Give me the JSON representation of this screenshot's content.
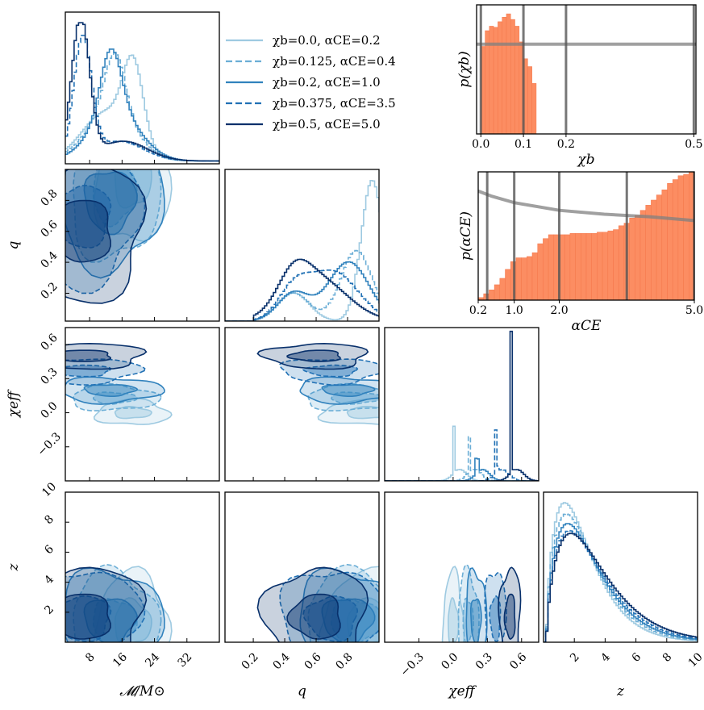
{
  "legend": [
    {
      "label": "χb=0.0, αCE=0.2",
      "color": "#9ecae1",
      "dash": "solid"
    },
    {
      "label": "χb=0.125, αCE=0.4",
      "color": "#6baed6",
      "dash": "dashed"
    },
    {
      "label": "χb=0.2, αCE=1.0",
      "color": "#3182bd",
      "dash": "solid"
    },
    {
      "label": "χb=0.375, αCE=3.5",
      "color": "#2171b5",
      "dash": "dashed"
    },
    {
      "label": "χb=0.5, αCE=5.0",
      "color": "#08306b",
      "dash": "solid"
    }
  ],
  "chart_data": [
    {
      "type": "corner",
      "variables": [
        "M/M⊙",
        "q",
        "χeff",
        "z"
      ],
      "xlabels": [
        "𝓜/M⊙",
        "q",
        "χeff",
        "z"
      ],
      "ylabels": [
        "",
        "q",
        "χeff",
        "z"
      ],
      "ticks": {
        "M": {
          "range": [
            2,
            40
          ],
          "values": [
            8,
            16,
            24,
            32
          ],
          "labels": [
            "8",
            "16",
            "24",
            "32"
          ]
        },
        "q": {
          "range": [
            0.02,
            1.0
          ],
          "values": [
            0.2,
            0.4,
            0.6,
            0.8
          ],
          "labels": [
            "0.2",
            "0.4",
            "0.6",
            "0.8"
          ]
        },
        "chi": {
          "range": [
            -0.6,
            0.75
          ],
          "values": [
            -0.3,
            0.0,
            0.3,
            0.6
          ],
          "labels": [
            "−0.3",
            "0.0",
            "0.3",
            "0.6"
          ]
        },
        "z": {
          "range": [
            0,
            10
          ],
          "values": [
            2,
            4,
            6,
            8,
            10
          ],
          "labels": [
            "2",
            "4",
            "6",
            "8",
            "10"
          ]
        }
      },
      "series_modes": [
        {
          "name": "χb=0.0, αCE=0.2",
          "M": 18.5,
          "q": 0.95,
          "chi": 0.0,
          "z": 1.3
        },
        {
          "name": "χb=0.125, αCE=0.4",
          "M": 14,
          "q": 0.85,
          "chi": 0.13,
          "z": 1.4
        },
        {
          "name": "χb=0.2, αCE=1.0",
          "M": 13,
          "q": 0.8,
          "chi": 0.2,
          "z": 1.5
        },
        {
          "name": "χb=0.375, αCE=3.5",
          "M": 6,
          "q": 0.7,
          "chi": 0.37,
          "z": 1.6
        },
        {
          "name": "χb=0.5, αCE=5.0",
          "M": 5.5,
          "q": 0.6,
          "chi": 0.5,
          "z": 1.7
        }
      ]
    },
    {
      "type": "bar",
      "xlabel": "χb",
      "ylabel": "p(χb)",
      "xlim": [
        -0.01,
        0.505
      ],
      "xticks": [
        0.0,
        0.1,
        0.2,
        0.5
      ],
      "xtick_labels": [
        "0.0",
        "0.1",
        "0.2",
        "0.5"
      ],
      "ylim": [
        0,
        1.15
      ],
      "vlines": [
        0.0,
        0.1,
        0.2,
        0.5
      ],
      "hline": 0.8,
      "bins": [
        0.0,
        0.01,
        0.02,
        0.03,
        0.04,
        0.05,
        0.06,
        0.07,
        0.08,
        0.09,
        0.1,
        0.11,
        0.12
      ],
      "values": [
        0.78,
        0.92,
        0.96,
        0.95,
        1.0,
        1.04,
        1.07,
        1.02,
        0.96,
        0.82,
        0.67,
        0.6,
        0.45
      ]
    },
    {
      "type": "bar",
      "xlabel": "αCE",
      "ylabel": "p(αCE)",
      "xlim": [
        0.2,
        5.0
      ],
      "xticks": [
        0.2,
        1.0,
        2.0,
        5.0
      ],
      "xtick_labels": [
        "0.2",
        "1.0",
        "2.0",
        "5.0"
      ],
      "ylim": [
        0,
        1.0
      ],
      "vlines": [
        0.4,
        1.0,
        2.0,
        3.5,
        5.0
      ],
      "prior": [
        [
          0.2,
          0.85
        ],
        [
          0.5,
          0.81
        ],
        [
          1.0,
          0.76
        ],
        [
          2.0,
          0.7
        ],
        [
          3.0,
          0.67
        ],
        [
          4.0,
          0.65
        ],
        [
          5.0,
          0.62
        ]
      ],
      "values": [
        0.02,
        0.05,
        0.08,
        0.12,
        0.17,
        0.24,
        0.3,
        0.33,
        0.33,
        0.34,
        0.37,
        0.44,
        0.48,
        0.51,
        0.51,
        0.51,
        0.51,
        0.52,
        0.52,
        0.52,
        0.52,
        0.52,
        0.53,
        0.53,
        0.54,
        0.55,
        0.58,
        0.6,
        0.64,
        0.66,
        0.7,
        0.74,
        0.78,
        0.82,
        0.86,
        0.91,
        0.94,
        0.97,
        0.98,
        1.0
      ]
    }
  ]
}
